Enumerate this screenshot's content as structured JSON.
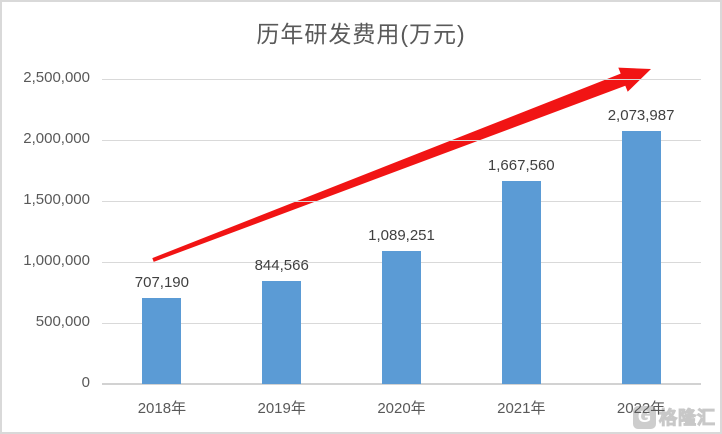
{
  "chart_data": {
    "type": "bar",
    "title": "历年研发费用(万元)",
    "categories": [
      "2018年",
      "2019年",
      "2020年",
      "2021年",
      "2022年"
    ],
    "values": [
      707190,
      844566,
      1089251,
      1667560,
      2073987
    ],
    "data_labels": [
      "707,190",
      "844,566",
      "1,089,251",
      "1,667,560",
      "2,073,987"
    ],
    "xlabel": "",
    "ylabel": "",
    "ylim": [
      0,
      2500000
    ],
    "ytick_interval": 500000,
    "yticks": [
      "0",
      "500,000",
      "1,000,000",
      "1,500,000",
      "2,000,000",
      "2,500,000"
    ],
    "grid": true,
    "legend": "none",
    "colors": {
      "bar": "#5B9BD5",
      "gridline": "#D9D9D9",
      "axis_line": "#D2D2D2",
      "title_text": "#595959",
      "axis_text": "#595959",
      "data_label_text": "#404040",
      "arrow": "#F11414",
      "border": "#D9D9D9"
    },
    "annotation": {
      "type": "growth-arrow",
      "direction": "up-right",
      "color": "#F11414"
    }
  },
  "watermark": {
    "logo_glyph": "G",
    "brand_text": "格隆汇"
  }
}
